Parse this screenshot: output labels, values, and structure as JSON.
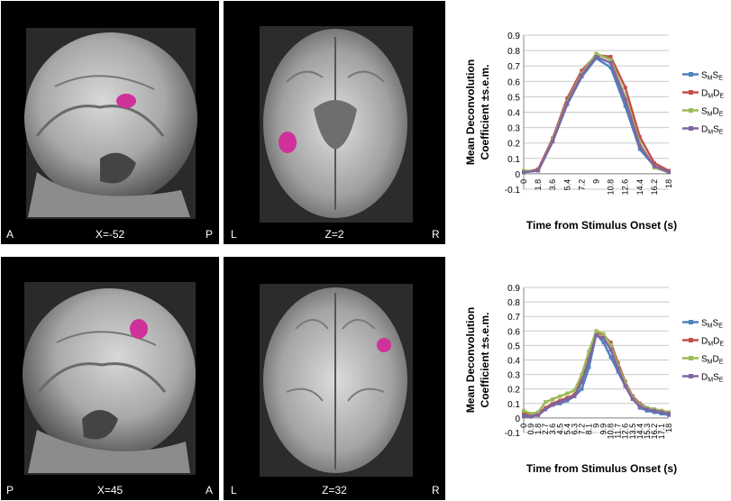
{
  "brain_panels": [
    {
      "view": "sagittal",
      "coord": "X=-52",
      "left_label": "A",
      "right_label": "P"
    },
    {
      "view": "axial",
      "coord": "Z=2",
      "left_label": "L",
      "right_label": "R"
    },
    {
      "view": "sagittal",
      "coord": "X=45",
      "left_label": "P",
      "right_label": "A"
    },
    {
      "view": "axial",
      "coord": "Z=32",
      "left_label": "L",
      "right_label": "R"
    }
  ],
  "colors": {
    "SMSE": "#4f81bd",
    "DMDE": "#c0504d",
    "SMDE": "#9bbb59",
    "DMSE": "#8064a2",
    "activation": "#d0309a"
  },
  "chart_data": [
    {
      "type": "line",
      "xlabel": "Time from Stimulus Onset (s)",
      "ylabel_line1": "Mean Deconvolution",
      "ylabel_line2": "Coefficient  ±s.e.m.",
      "x": [
        "0",
        "1.8",
        "3.6",
        "5.4",
        "7.2",
        "9",
        "10.8",
        "12.6",
        "14.4",
        "16.2",
        "18"
      ],
      "yticks": [
        "-0.1",
        "0",
        "0.1",
        "0.2",
        "0.3",
        "0.4",
        "0.5",
        "0.6",
        "0.7",
        "0.8",
        "0.9"
      ],
      "ylim": [
        -0.1,
        0.9
      ],
      "grid": true,
      "legend": "right",
      "series": [
        {
          "key": "SMSE",
          "main": "S",
          "sub1": "M",
          "mid": "S",
          "sub2": "E",
          "values": [
            0.01,
            0.02,
            0.21,
            0.45,
            0.63,
            0.75,
            0.69,
            0.44,
            0.16,
            0.05,
            0.01
          ]
        },
        {
          "key": "DMDE",
          "main": "D",
          "sub1": "M",
          "mid": "D",
          "sub2": "E",
          "values": [
            0.01,
            0.03,
            0.23,
            0.49,
            0.67,
            0.77,
            0.76,
            0.56,
            0.24,
            0.07,
            0.02
          ]
        },
        {
          "key": "SMDE",
          "main": "S",
          "sub1": "M",
          "mid": "D",
          "sub2": "E",
          "values": [
            0.02,
            0.02,
            0.22,
            0.47,
            0.65,
            0.78,
            0.74,
            0.5,
            0.2,
            0.04,
            0.01
          ]
        },
        {
          "key": "DMSE",
          "main": "D",
          "sub1": "M",
          "mid": "S",
          "sub2": "E",
          "values": [
            0.01,
            0.02,
            0.21,
            0.46,
            0.64,
            0.76,
            0.72,
            0.48,
            0.18,
            0.05,
            0.01
          ]
        }
      ]
    },
    {
      "type": "line",
      "xlabel": "Time from Stimulus Onset (s)",
      "ylabel_line1": "Mean Deconvolution",
      "ylabel_line2": "Coefficient  ±s.e.m.",
      "x": [
        "0",
        "0.9",
        "1.8",
        "2.7",
        "3.6",
        "4.5",
        "5.4",
        "6.3",
        "7.2",
        "8.1",
        "9",
        "9.9",
        "10.8",
        "11.7",
        "12.6",
        "13.5",
        "14.4",
        "15.3",
        "16.2",
        "17.1",
        "18"
      ],
      "yticks": [
        "-0.1",
        "0",
        "0.1",
        "0.2",
        "0.3",
        "0.4",
        "0.5",
        "0.6",
        "0.7",
        "0.8",
        "0.9"
      ],
      "ylim": [
        -0.1,
        0.9
      ],
      "grid": true,
      "legend": "right",
      "series": [
        {
          "key": "SMSE",
          "main": "S",
          "sub1": "M",
          "mid": "S",
          "sub2": "E",
          "values": [
            0.02,
            0.01,
            0.02,
            0.06,
            0.09,
            0.1,
            0.12,
            0.15,
            0.2,
            0.35,
            0.58,
            0.52,
            0.42,
            0.32,
            0.22,
            0.15,
            0.07,
            0.05,
            0.04,
            0.03,
            0.02
          ]
        },
        {
          "key": "DMDE",
          "main": "D",
          "sub1": "M",
          "mid": "D",
          "sub2": "E",
          "values": [
            0.04,
            0.02,
            0.03,
            0.07,
            0.1,
            0.12,
            0.14,
            0.16,
            0.28,
            0.45,
            0.59,
            0.57,
            0.52,
            0.38,
            0.25,
            0.15,
            0.1,
            0.07,
            0.06,
            0.05,
            0.04
          ]
        },
        {
          "key": "SMDE",
          "main": "S",
          "sub1": "M",
          "mid": "D",
          "sub2": "E",
          "values": [
            0.05,
            0.03,
            0.04,
            0.11,
            0.13,
            0.15,
            0.17,
            0.19,
            0.3,
            0.46,
            0.6,
            0.58,
            0.5,
            0.36,
            0.24,
            0.14,
            0.09,
            0.07,
            0.06,
            0.05,
            0.04
          ]
        },
        {
          "key": "DMSE",
          "main": "D",
          "sub1": "M",
          "mid": "S",
          "sub2": "E",
          "values": [
            0.01,
            0.01,
            0.02,
            0.06,
            0.09,
            0.11,
            0.13,
            0.15,
            0.25,
            0.4,
            0.57,
            0.55,
            0.47,
            0.34,
            0.22,
            0.13,
            0.08,
            0.06,
            0.05,
            0.04,
            0.03
          ]
        }
      ]
    }
  ]
}
